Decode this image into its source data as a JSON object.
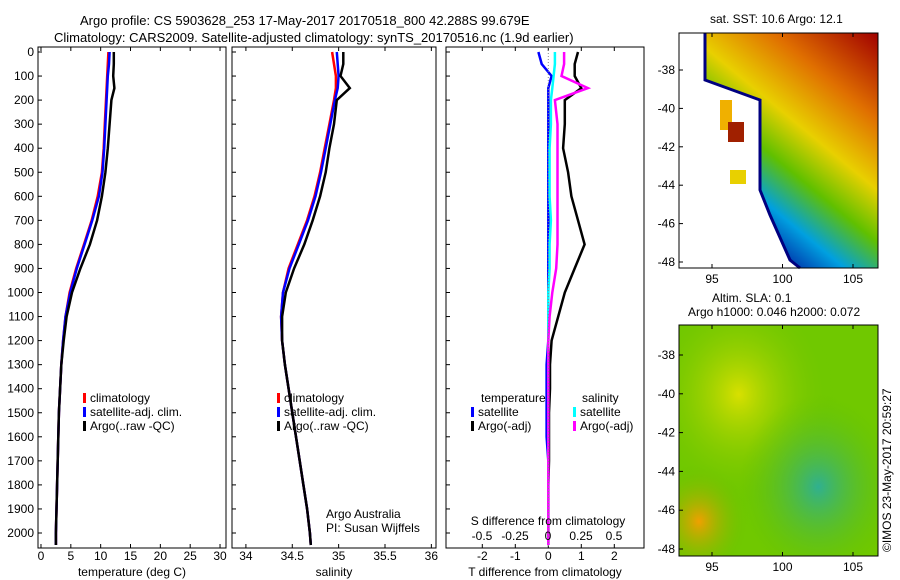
{
  "title": {
    "line1": "Argo profile: CS 5903628_253 17-May-2017 20170518_800 42.288S 99.679E",
    "line2": "Climatology: CARS2009. Satellite-adjusted climatology: synTS_20170516.nc (1.9d earlier)"
  },
  "credit": {
    "argo": "Argo Australia",
    "pi": "PI: Susan Wijffels",
    "copyright": "©IMOS 23-May-2017 20:59:27"
  },
  "colors": {
    "climatology": "#ff0000",
    "satellite": "#0000ff",
    "argo": "#000000",
    "sal_satellite": "#00ffff",
    "sal_argo": "#ff00ff"
  },
  "chart_data": [
    {
      "type": "line",
      "name": "temperature",
      "xlabel": "temperature (deg C)",
      "xlim": [
        -0.5,
        31
      ],
      "ylim": [
        2050,
        0
      ],
      "xticks": [
        "0",
        "5",
        "10",
        "15",
        "20",
        "25",
        "30"
      ],
      "yticks": [
        "0",
        "100",
        "200",
        "300",
        "400",
        "500",
        "600",
        "700",
        "800",
        "900",
        "1000",
        "1100",
        "1200",
        "1300",
        "1400",
        "1500",
        "1600",
        "1700",
        "1800",
        "1900",
        "2000"
      ],
      "depth": [
        0,
        50,
        100,
        150,
        200,
        300,
        400,
        500,
        600,
        700,
        800,
        900,
        1000,
        1100,
        1200,
        1300,
        1400,
        1500,
        1600,
        1700,
        1800,
        1900,
        2000,
        2050
      ],
      "legend": [
        "climatology",
        "satellite-adj. clim.",
        "Argo(..raw -QC)"
      ],
      "series": [
        {
          "name": "climatology",
          "color": "#ff0000",
          "values": [
            11.3,
            11.2,
            11.1,
            11.0,
            10.9,
            10.7,
            10.5,
            10.2,
            9.5,
            8.5,
            7.2,
            5.9,
            4.8,
            4.1,
            3.7,
            3.4,
            3.2,
            3.0,
            2.9,
            2.8,
            2.7,
            2.6,
            2.5,
            2.5
          ]
        },
        {
          "name": "satellite-adj. clim.",
          "color": "#0000ff",
          "values": [
            11.5,
            11.4,
            11.2,
            11.1,
            11.0,
            10.8,
            10.6,
            10.3,
            9.7,
            8.6,
            7.3,
            6.0,
            4.9,
            4.1,
            3.7,
            3.4,
            3.2,
            3.0,
            2.9,
            2.8,
            2.7,
            2.6,
            2.5,
            2.5
          ]
        },
        {
          "name": "Argo(..raw -QC)",
          "color": "#000000",
          "values": [
            12.2,
            12.2,
            12.1,
            12.3,
            11.8,
            11.5,
            11.2,
            10.8,
            10.2,
            9.4,
            8.2,
            6.6,
            5.2,
            4.3,
            3.8,
            3.4,
            3.2,
            3.0,
            2.9,
            2.8,
            2.7,
            2.6,
            2.5,
            2.5
          ]
        }
      ]
    },
    {
      "type": "line",
      "name": "salinity",
      "xlabel": "salinity",
      "xlim": [
        33.85,
        36.05
      ],
      "ylim": [
        2050,
        0
      ],
      "xticks": [
        "34",
        "34.5",
        "35",
        "35.5",
        "36"
      ],
      "legend": [
        "climatology",
        "satellite-adj. clim.",
        "Argo(..raw -QC)"
      ],
      "series": [
        {
          "name": "climatology",
          "color": "#ff0000",
          "values": [
            34.93,
            34.95,
            34.97,
            34.97,
            34.95,
            34.9,
            34.85,
            34.8,
            34.74,
            34.66,
            34.56,
            34.46,
            34.4,
            34.38,
            34.39,
            34.42,
            34.46,
            34.5,
            34.54,
            34.58,
            34.62,
            34.66,
            34.69,
            34.7
          ]
        },
        {
          "name": "satellite-adj. clim.",
          "color": "#0000ff",
          "values": [
            34.98,
            34.99,
            35.0,
            34.99,
            34.96,
            34.91,
            34.86,
            34.81,
            34.75,
            34.67,
            34.57,
            34.47,
            34.4,
            34.38,
            34.39,
            34.42,
            34.46,
            34.5,
            34.54,
            34.58,
            34.62,
            34.66,
            34.69,
            34.7
          ]
        },
        {
          "name": "Argo(..raw -QC)",
          "color": "#000000",
          "values": [
            35.05,
            35.05,
            35.02,
            35.12,
            34.98,
            34.95,
            34.9,
            34.86,
            34.8,
            34.72,
            34.63,
            34.52,
            34.43,
            34.39,
            34.39,
            34.42,
            34.46,
            34.5,
            34.54,
            34.58,
            34.62,
            34.66,
            34.69,
            34.7
          ]
        }
      ]
    },
    {
      "type": "line",
      "name": "differences",
      "xlabel": "T difference from climatology",
      "x2label": "S difference from climatology",
      "xlim": [
        -3.1,
        2.9
      ],
      "ylim": [
        2050,
        0
      ],
      "xticks": [
        "-2",
        "-1",
        "0",
        "1",
        "2"
      ],
      "x2ticks": [
        "-0.5",
        "-0.25",
        "0",
        "0.25",
        "0.5"
      ],
      "legend_titles": [
        "temperature",
        "salinity"
      ],
      "legend": [
        "satellite",
        "Argo(-adj)",
        "satellite",
        "Argo(-adj)"
      ],
      "series": [
        {
          "name": "T satellite",
          "axis": "T",
          "color": "#0000ff",
          "values": [
            -0.3,
            -0.2,
            0.1,
            0,
            0,
            0,
            0,
            0,
            0,
            0,
            0,
            0,
            0,
            0,
            0,
            -0.05,
            -0.05,
            -0.05,
            -0.05,
            0,
            0,
            0,
            0,
            0
          ]
        },
        {
          "name": "T Argo(-adj)",
          "axis": "T",
          "color": "#000000",
          "values": [
            0.9,
            0.8,
            0.8,
            1.0,
            0.5,
            0.5,
            0.45,
            0.6,
            0.7,
            0.9,
            1.1,
            0.8,
            0.5,
            0.3,
            0.1,
            0.05,
            0.05,
            0.02,
            0.02,
            0.02,
            0,
            0,
            0,
            0
          ]
        },
        {
          "name": "S satellite",
          "axis": "S",
          "color": "#00ffff",
          "values": [
            0.05,
            0.05,
            0.04,
            0.03,
            0.02,
            0.02,
            0.01,
            0.01,
            0.01,
            0.02,
            0.01,
            0.01,
            0,
            0,
            0,
            0,
            0,
            0,
            0,
            0,
            0,
            0,
            0,
            0
          ]
        },
        {
          "name": "S Argo(-adj)",
          "axis": "S",
          "color": "#ff00ff",
          "values": [
            0.12,
            0.12,
            0.1,
            0.3,
            0.05,
            0.07,
            0.07,
            0.07,
            0.07,
            0.07,
            0.07,
            0.06,
            0.03,
            0.01,
            0,
            0,
            0,
            0,
            0,
            0,
            0,
            0,
            0,
            0
          ]
        }
      ]
    },
    {
      "type": "heatmap",
      "name": "sst-map",
      "title": "sat. SST: 10.6  Argo: 12.1",
      "xticks": [
        "95",
        "100",
        "105"
      ],
      "yticks": [
        "-38",
        "-40",
        "-42",
        "-44",
        "-46",
        "-48"
      ]
    },
    {
      "type": "heatmap",
      "name": "sla-map",
      "title1": "Altim. SLA: 0.1",
      "title2": "Argo h1000: 0.046  h2000: 0.072",
      "xticks": [
        "95",
        "100",
        "105"
      ],
      "yticks": [
        "-38",
        "-40",
        "-42",
        "-44",
        "-46",
        "-48"
      ]
    }
  ]
}
